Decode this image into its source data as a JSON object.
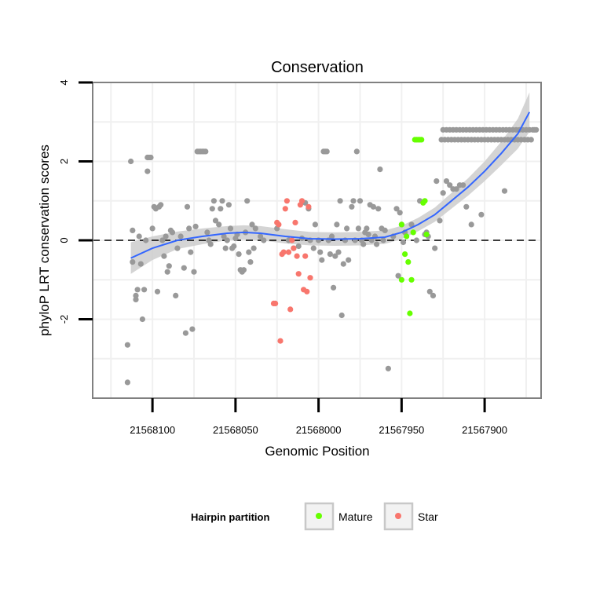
{
  "chart_data": {
    "type": "scatter",
    "title": "Conservation",
    "xlabel": "Genomic Position",
    "ylabel": "phyloP LRT conservation scores",
    "x_reversed": true,
    "xlim": [
      21568136,
      21567866
    ],
    "ylim": [
      -4,
      4
    ],
    "x_ticks": [
      21568100,
      21568050,
      21568000,
      21567950,
      21567900
    ],
    "x_tick_labels": [
      "21568100",
      "21568050",
      "21568000",
      "21567950",
      "21567900"
    ],
    "y_ticks": [
      4,
      2,
      0,
      -2
    ],
    "y_tick_labels": [
      "4",
      "2",
      "0",
      "-2"
    ],
    "grid": true,
    "reference_line": {
      "y": 0,
      "style": "dashed"
    },
    "legend": {
      "title": "Hairpin partition",
      "position": "bottom",
      "entries": [
        {
          "label": "Mature",
          "color": "#66ff00"
        },
        {
          "label": "Star",
          "color": "#f8766d"
        }
      ]
    },
    "colors": {
      "other": "#999999",
      "mature": "#66ff00",
      "star": "#f8766d",
      "smooth": "#3366ff",
      "band": "#cccccc"
    },
    "smooth_line": [
      [
        21568113,
        -0.45
      ],
      [
        21568100,
        -0.2
      ],
      [
        21568085,
        0.0
      ],
      [
        21568070,
        0.1
      ],
      [
        21568055,
        0.18
      ],
      [
        21568045,
        0.2
      ],
      [
        21568035,
        0.18
      ],
      [
        21568020,
        0.1
      ],
      [
        21568005,
        0.04
      ],
      [
        21567990,
        0.03
      ],
      [
        21567975,
        0.04
      ],
      [
        21567960,
        0.08
      ],
      [
        21567950,
        0.2
      ],
      [
        21567940,
        0.4
      ],
      [
        21567930,
        0.65
      ],
      [
        21567920,
        1.0
      ],
      [
        21567910,
        1.35
      ],
      [
        21567900,
        1.75
      ],
      [
        21567890,
        2.2
      ],
      [
        21567880,
        2.7
      ],
      [
        21567873,
        3.25
      ]
    ],
    "band_halfwidth": [
      0.4,
      0.3,
      0.22,
      0.2,
      0.18,
      0.18,
      0.18,
      0.18,
      0.17,
      0.17,
      0.17,
      0.17,
      0.17,
      0.17,
      0.18,
      0.2,
      0.22,
      0.25,
      0.3,
      0.38,
      0.5
    ],
    "series": [
      {
        "name": "",
        "color": "#999999",
        "points": [
          [
            21568115,
            -3.6
          ],
          [
            21568115,
            -2.65
          ],
          [
            21568113,
            2.0
          ],
          [
            21568112,
            -0.55
          ],
          [
            21568112,
            0.25
          ],
          [
            21568110,
            -1.5
          ],
          [
            21568110,
            -1.4
          ],
          [
            21568109,
            -1.25
          ],
          [
            21568108,
            0.1
          ],
          [
            21568107,
            -0.6
          ],
          [
            21568106,
            -2.0
          ],
          [
            21568105,
            -1.25
          ],
          [
            21568104,
            0.0
          ],
          [
            21568103,
            1.75
          ],
          [
            21568103,
            2.1
          ],
          [
            21568102,
            2.1
          ],
          [
            21568101,
            2.1
          ],
          [
            21568100,
            0.3
          ],
          [
            21568099,
            0.85
          ],
          [
            21568098,
            0.8
          ],
          [
            21568097,
            -1.3
          ],
          [
            21568096,
            0.85
          ],
          [
            21568095,
            0.9
          ],
          [
            21568094,
            0.0
          ],
          [
            21568093,
            -0.4
          ],
          [
            21568092,
            0.1
          ],
          [
            21568091,
            -0.8
          ],
          [
            21568090,
            -0.65
          ],
          [
            21568089,
            0.25
          ],
          [
            21568088,
            0.2
          ],
          [
            21568086,
            -1.4
          ],
          [
            21568085,
            -0.2
          ],
          [
            21568083,
            0.1
          ],
          [
            21568081,
            -0.7
          ],
          [
            21568080,
            -2.35
          ],
          [
            21568079,
            0.85
          ],
          [
            21568078,
            0.3
          ],
          [
            21568077,
            -0.3
          ],
          [
            21568076,
            -2.25
          ],
          [
            21568075,
            -0.8
          ],
          [
            21568074,
            0.35
          ],
          [
            21568073,
            2.25
          ],
          [
            21568072,
            2.25
          ],
          [
            21568071,
            2.25
          ],
          [
            21568070,
            2.25
          ],
          [
            21568069,
            2.25
          ],
          [
            21568068,
            2.25
          ],
          [
            21568067,
            0.2
          ],
          [
            21568066,
            0.0
          ],
          [
            21568065,
            -0.1
          ],
          [
            21568064,
            0.8
          ],
          [
            21568063,
            1.0
          ],
          [
            21568062,
            0.5
          ],
          [
            21568060,
            0.4
          ],
          [
            21568059,
            0.8
          ],
          [
            21568058,
            1.0
          ],
          [
            21568057,
            0.1
          ],
          [
            21568056,
            -0.2
          ],
          [
            21568055,
            0.0
          ],
          [
            21568054,
            0.9
          ],
          [
            21568053,
            0.3
          ],
          [
            21568052,
            -0.2
          ],
          [
            21568051,
            -0.15
          ],
          [
            21568050,
            0.05
          ],
          [
            21568049,
            0.15
          ],
          [
            21568048,
            -0.35
          ],
          [
            21568047,
            -0.75
          ],
          [
            21568046,
            -0.8
          ],
          [
            21568045,
            -0.75
          ],
          [
            21568044,
            0.2
          ],
          [
            21568043,
            1.0
          ],
          [
            21568042,
            -0.3
          ],
          [
            21568041,
            -0.55
          ],
          [
            21568040,
            0.4
          ],
          [
            21568039,
            -0.2
          ],
          [
            21568038,
            0.3
          ],
          [
            21568035,
            0.1
          ],
          [
            21568033,
            0.0
          ],
          [
            21568025,
            0.3
          ],
          [
            21568018,
            0.0
          ],
          [
            21568015,
            -0.2
          ],
          [
            21568012,
            -0.15
          ],
          [
            21568010,
            0.05
          ],
          [
            21568008,
            0.95
          ],
          [
            21568006,
            0.8
          ],
          [
            21568005,
            0.0
          ],
          [
            21568003,
            -0.2
          ],
          [
            21568002,
            0.4
          ],
          [
            21568000,
            0.0
          ],
          [
            21567999,
            -0.3
          ],
          [
            21567998,
            -0.5
          ],
          [
            21567997,
            2.25
          ],
          [
            21567996,
            2.25
          ],
          [
            21567995,
            2.25
          ],
          [
            21567994,
            0.0
          ],
          [
            21567993,
            -0.35
          ],
          [
            21567992,
            0.1
          ],
          [
            21567991,
            -1.2
          ],
          [
            21567990,
            -0.4
          ],
          [
            21567989,
            0.4
          ],
          [
            21567988,
            -0.3
          ],
          [
            21567987,
            1.0
          ],
          [
            21567986,
            -1.9
          ],
          [
            21567985,
            -0.6
          ],
          [
            21567984,
            0.0
          ],
          [
            21567983,
            0.3
          ],
          [
            21567982,
            -0.5
          ],
          [
            21567980,
            0.85
          ],
          [
            21567979,
            1.0
          ],
          [
            21567978,
            0.0
          ],
          [
            21567977,
            2.25
          ],
          [
            21567976,
            0.3
          ],
          [
            21567975,
            1.0
          ],
          [
            21567974,
            0.0
          ],
          [
            21567973,
            -0.1
          ],
          [
            21567972,
            0.2
          ],
          [
            21567971,
            0.3
          ],
          [
            21567970,
            0.15
          ],
          [
            21567969,
            0.9
          ],
          [
            21567968,
            0.0
          ],
          [
            21567967,
            0.85
          ],
          [
            21567966,
            0.1
          ],
          [
            21567965,
            -0.1
          ],
          [
            21567964,
            0.8
          ],
          [
            21567963,
            1.8
          ],
          [
            21567962,
            0.3
          ],
          [
            21567961,
            0.0
          ],
          [
            21567960,
            0.25
          ],
          [
            21567958,
            -3.25
          ],
          [
            21567955,
            0.1
          ],
          [
            21567953,
            0.8
          ],
          [
            21567952,
            -0.9
          ],
          [
            21567951,
            0.7
          ],
          [
            21567950,
            0.4
          ],
          [
            21567949,
            -0.05
          ],
          [
            21567948,
            0.2
          ],
          [
            21567944,
            0.4
          ],
          [
            21567941,
            0.0
          ],
          [
            21567939,
            1.0
          ],
          [
            21567936,
            0.15
          ],
          [
            21567935,
            0.2
          ],
          [
            21567934,
            0.1
          ],
          [
            21567933,
            -1.3
          ],
          [
            21567931,
            -1.4
          ],
          [
            21567930,
            -0.2
          ],
          [
            21567929,
            1.5
          ],
          [
            21567927,
            0.5
          ],
          [
            21567925,
            1.2
          ],
          [
            21567923,
            1.5
          ],
          [
            21567921,
            1.4
          ],
          [
            21567919,
            1.3
          ],
          [
            21567917,
            1.3
          ],
          [
            21567915,
            1.4
          ],
          [
            21567913,
            1.4
          ],
          [
            21567911,
            0.85
          ],
          [
            21567908,
            0.4
          ],
          [
            21567906,
            2.55
          ],
          [
            21567904,
            2.55
          ],
          [
            21567902,
            0.65
          ],
          [
            21567888,
            1.25
          ],
          [
            21567926,
            2.55
          ],
          [
            21567925,
            2.8
          ],
          [
            21567924,
            2.55
          ],
          [
            21567923,
            2.8
          ],
          [
            21567922,
            2.55
          ],
          [
            21567921,
            2.8
          ],
          [
            21567920,
            2.55
          ],
          [
            21567919,
            2.8
          ],
          [
            21567918,
            2.55
          ],
          [
            21567917,
            2.8
          ],
          [
            21567916,
            2.55
          ],
          [
            21567915,
            2.8
          ],
          [
            21567914,
            2.55
          ],
          [
            21567913,
            2.8
          ],
          [
            21567912,
            2.55
          ],
          [
            21567911,
            2.8
          ],
          [
            21567910,
            2.55
          ],
          [
            21567909,
            2.8
          ],
          [
            21567908,
            2.55
          ],
          [
            21567907,
            2.8
          ],
          [
            21567905,
            2.8
          ],
          [
            21567903,
            2.8
          ],
          [
            21567902,
            2.55
          ],
          [
            21567901,
            2.8
          ],
          [
            21567900,
            2.55
          ],
          [
            21567899,
            2.8
          ],
          [
            21567898,
            2.55
          ],
          [
            21567897,
            2.8
          ],
          [
            21567896,
            2.55
          ],
          [
            21567895,
            2.8
          ],
          [
            21567894,
            2.55
          ],
          [
            21567893,
            2.8
          ],
          [
            21567892,
            2.55
          ],
          [
            21567891,
            2.8
          ],
          [
            21567890,
            2.55
          ],
          [
            21567889,
            2.8
          ],
          [
            21567888,
            2.55
          ],
          [
            21567887,
            2.8
          ],
          [
            21567886,
            2.55
          ],
          [
            21567885,
            2.8
          ],
          [
            21567884,
            2.55
          ],
          [
            21567883,
            2.8
          ],
          [
            21567882,
            2.55
          ],
          [
            21567881,
            2.8
          ],
          [
            21567880,
            2.55
          ],
          [
            21567879,
            2.8
          ],
          [
            21567878,
            2.55
          ],
          [
            21567877,
            2.8
          ],
          [
            21567876,
            2.55
          ],
          [
            21567875,
            2.8
          ],
          [
            21567874,
            2.55
          ],
          [
            21567873,
            2.8
          ],
          [
            21567872,
            2.55
          ],
          [
            21567871,
            2.8
          ],
          [
            21567870,
            2.8
          ],
          [
            21567869,
            2.8
          ]
        ]
      },
      {
        "name": "Mature",
        "color": "#66ff00",
        "points": [
          [
            21567950,
            0.4
          ],
          [
            21567950,
            -1.0
          ],
          [
            21567948,
            -0.35
          ],
          [
            21567947,
            0.1
          ],
          [
            21567946,
            -0.55
          ],
          [
            21567945,
            -1.85
          ],
          [
            21567944,
            -1.0
          ],
          [
            21567943,
            0.2
          ],
          [
            21567942,
            2.55
          ],
          [
            21567941,
            2.55
          ],
          [
            21567940,
            2.55
          ],
          [
            21567939,
            2.55
          ],
          [
            21567938,
            2.55
          ],
          [
            21567937,
            0.95
          ],
          [
            21567936,
            1.0
          ],
          [
            21567935,
            0.15
          ]
        ]
      },
      {
        "name": "Star",
        "color": "#f8766d",
        "points": [
          [
            21568027,
            -1.6
          ],
          [
            21568026,
            -1.6
          ],
          [
            21568025,
            0.45
          ],
          [
            21568024,
            0.4
          ],
          [
            21568023,
            -2.55
          ],
          [
            21568022,
            -0.35
          ],
          [
            21568021,
            -0.3
          ],
          [
            21568020,
            0.8
          ],
          [
            21568019,
            1.0
          ],
          [
            21568018,
            -0.3
          ],
          [
            21568017,
            -1.75
          ],
          [
            21568016,
            0.0
          ],
          [
            21568015,
            -0.2
          ],
          [
            21568014,
            0.45
          ],
          [
            21568013,
            -0.4
          ],
          [
            21568012,
            -0.85
          ],
          [
            21568011,
            0.9
          ],
          [
            21568010,
            1.0
          ],
          [
            21568009,
            -1.25
          ],
          [
            21568008,
            -0.4
          ],
          [
            21568007,
            -1.3
          ],
          [
            21568006,
            0.85
          ],
          [
            21568005,
            -0.95
          ]
        ]
      }
    ]
  }
}
